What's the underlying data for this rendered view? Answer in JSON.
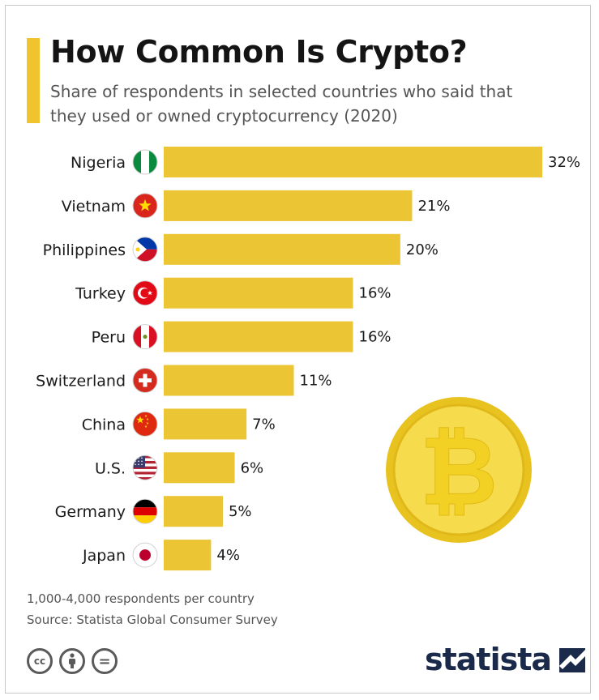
{
  "header": {
    "title": "How Common Is Crypto?",
    "subtitle": "Share of respondents in selected countries who said that they used or owned cryptocurrency (2020)"
  },
  "chart_data": {
    "type": "bar",
    "orientation": "horizontal",
    "categories": [
      "Nigeria",
      "Vietnam",
      "Philippines",
      "Turkey",
      "Peru",
      "Switzerland",
      "China",
      "U.S.",
      "Germany",
      "Japan"
    ],
    "values": [
      32,
      21,
      20,
      16,
      16,
      11,
      7,
      6,
      5,
      4
    ],
    "value_labels": [
      "32%",
      "21%",
      "20%",
      "16%",
      "16%",
      "11%",
      "7%",
      "6%",
      "5%",
      "4%"
    ],
    "unit": "%",
    "bar_color": "#ebc534",
    "xlim": [
      0,
      32
    ],
    "grid": false,
    "legend": "none"
  },
  "flags": [
    "nigeria-flag-icon",
    "vietnam-flag-icon",
    "philippines-flag-icon",
    "turkey-flag-icon",
    "peru-flag-icon",
    "switzerland-flag-icon",
    "china-flag-icon",
    "us-flag-icon",
    "germany-flag-icon",
    "japan-flag-icon"
  ],
  "decoration": {
    "coin": "bitcoin-coin-icon",
    "coin_glyph": "₿"
  },
  "footer": {
    "note": "1,000-4,000 respondents per country",
    "source": "Source: Statista Global Consumer Survey",
    "license_icons": [
      "cc-icon",
      "attribution-icon",
      "no-derivatives-icon"
    ],
    "cc_text": "cc",
    "nd_text": "=",
    "brand": "statista"
  },
  "colors": {
    "accent": "#f0c42f",
    "brand": "#1b2a4a"
  }
}
